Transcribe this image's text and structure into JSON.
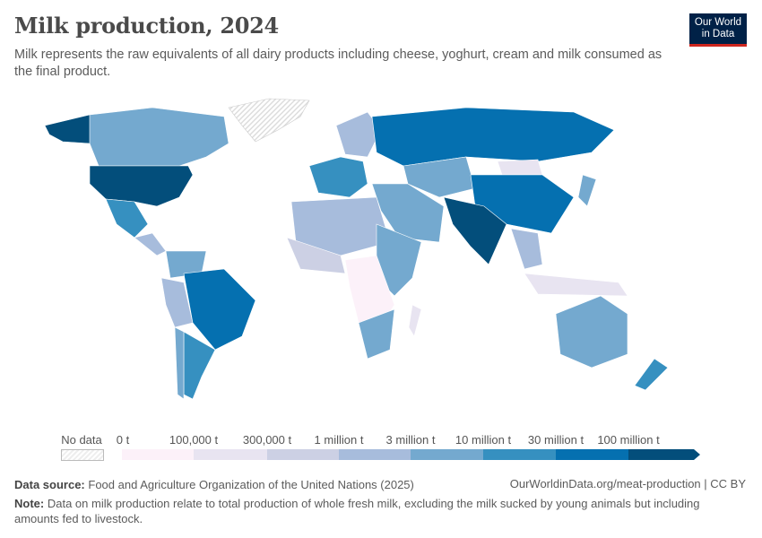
{
  "header": {
    "title": "Milk production, 2024",
    "subtitle": "Milk represents the raw equivalents of all dairy products including cheese, yoghurt, cream and milk consumed as the final product.",
    "logo": "Our World in Data"
  },
  "legend": {
    "no_data": "No data",
    "labels": [
      "0 t",
      "100,000 t",
      "300,000 t",
      "1 million t",
      "3 million t",
      "10 million t",
      "30 million t",
      "100 million t"
    ],
    "colors": [
      "#fcf1f9",
      "#e8e4f1",
      "#ccd0e4",
      "#a7bcdc",
      "#74a9cf",
      "#3690c0",
      "#0570b0",
      "#034e7b"
    ],
    "no_data_color": "#eeeeee"
  },
  "footer": {
    "source_label": "Data source:",
    "source": "Food and Agriculture Organization of the United Nations (2025)",
    "url": "OurWorldinData.org/meat-production | CC BY",
    "note_label": "Note:",
    "note": "Data on milk production relate to total production of whole fresh milk, excluding the milk sucked by young animals but including amounts fed to livestock."
  }
}
